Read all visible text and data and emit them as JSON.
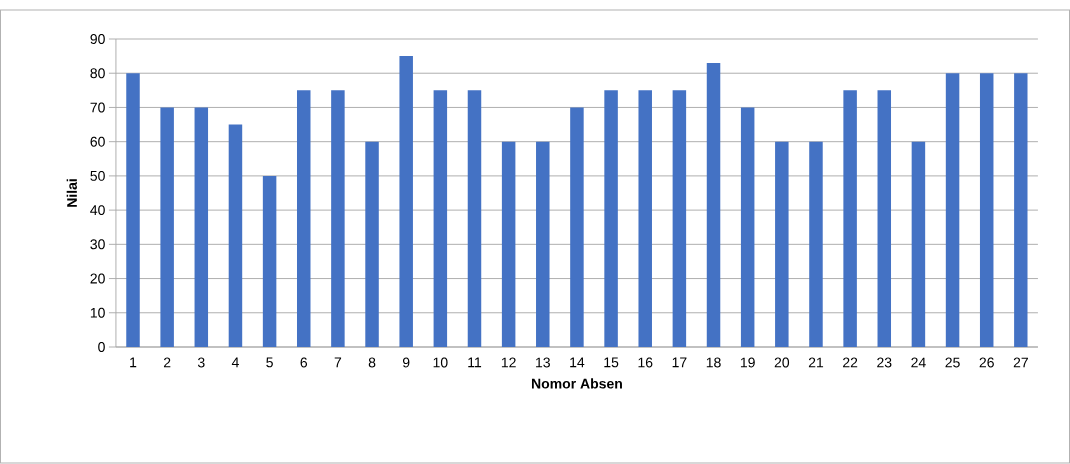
{
  "chart_data": {
    "type": "bar",
    "xlabel": "Nomor Absen",
    "ylabel": "Nilai",
    "categories": [
      "1",
      "2",
      "3",
      "4",
      "5",
      "6",
      "7",
      "8",
      "9",
      "10",
      "11",
      "12",
      "13",
      "14",
      "15",
      "16",
      "17",
      "18",
      "19",
      "20",
      "21",
      "22",
      "23",
      "24",
      "25",
      "26",
      "27"
    ],
    "values": [
      80,
      70,
      70,
      65,
      50,
      75,
      75,
      60,
      85,
      75,
      75,
      60,
      60,
      70,
      75,
      75,
      75,
      83,
      70,
      60,
      60,
      75,
      75,
      60,
      80,
      80,
      80
    ],
    "color": "#4472c4",
    "ylim": [
      0,
      90
    ],
    "yticks": [
      0,
      10,
      20,
      30,
      40,
      50,
      60,
      70,
      80,
      90
    ],
    "grid": "y"
  }
}
